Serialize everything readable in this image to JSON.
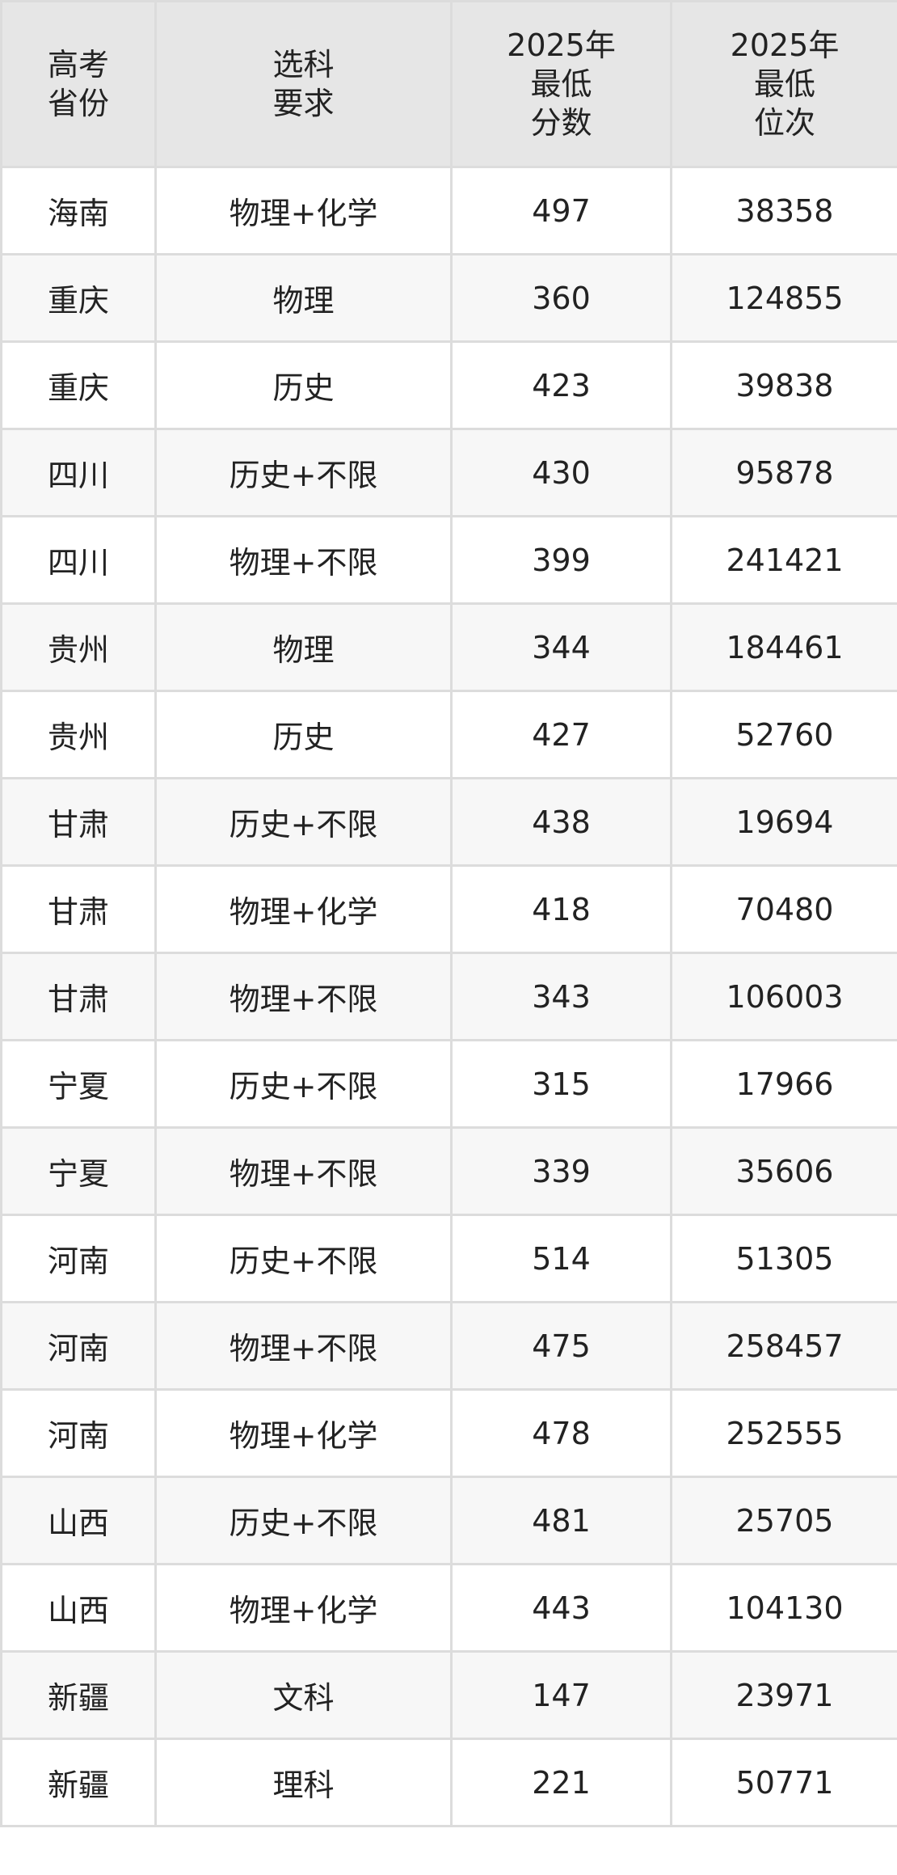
{
  "header": {
    "province": [
      "高考",
      "省份"
    ],
    "subject": [
      "选科",
      "要求"
    ],
    "min_score": [
      "2025年",
      "最低",
      "分数"
    ],
    "min_rank": [
      "2025年",
      "最低",
      "位次"
    ]
  },
  "rows": [
    [
      "海南",
      "物理+化学",
      "497",
      "38358"
    ],
    [
      "重庆",
      "物理",
      "360",
      "124855"
    ],
    [
      "重庆",
      "历史",
      "423",
      "39838"
    ],
    [
      "四川",
      "历史+不限",
      "430",
      "95878"
    ],
    [
      "四川",
      "物理+不限",
      "399",
      "241421"
    ],
    [
      "贵州",
      "物理",
      "344",
      "184461"
    ],
    [
      "贵州",
      "历史",
      "427",
      "52760"
    ],
    [
      "甘肃",
      "历史+不限",
      "438",
      "19694"
    ],
    [
      "甘肃",
      "物理+化学",
      "418",
      "70480"
    ],
    [
      "甘肃",
      "物理+不限",
      "343",
      "106003"
    ],
    [
      "宁夏",
      "历史+不限",
      "315",
      "17966"
    ],
    [
      "宁夏",
      "物理+不限",
      "339",
      "35606"
    ],
    [
      "河南",
      "历史+不限",
      "514",
      "51305"
    ],
    [
      "河南",
      "物理+不限",
      "475",
      "258457"
    ],
    [
      "河南",
      "物理+化学",
      "478",
      "252555"
    ],
    [
      "山西",
      "历史+不限",
      "481",
      "25705"
    ],
    [
      "山西",
      "物理+化学",
      "443",
      "104130"
    ],
    [
      "新疆",
      "文科",
      "147",
      "23971"
    ],
    [
      "新疆",
      "理科",
      "221",
      "50771"
    ]
  ],
  "colors": {
    "header_bg": "#e6e6e6",
    "stripe_bg": "#f7f7f7",
    "border": "#dcdcdc"
  }
}
